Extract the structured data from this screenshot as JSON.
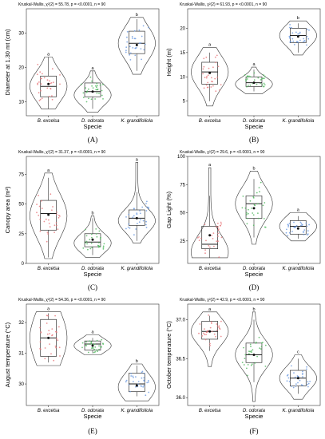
{
  "page": {
    "type": "figure"
  },
  "chart_data": [
    {
      "type": "violin-box",
      "panel_label": "(A)",
      "stat_text": "Kruskal-Wallis, χ²(2) = 55.78, p = <0.0001, n = 90",
      "xlabel": "Specie",
      "ylabel": "Diameter at 1.30 mt (cm)",
      "ylim": [
        6,
        37
      ],
      "yticks": [
        10,
        20,
        30
      ],
      "categories": [
        "B. excelsa",
        "D. odorata",
        "K. grandifoliola"
      ],
      "colors": [
        "#e8777a",
        "#4fb85c",
        "#6a98e0"
      ],
      "groups": [
        {
          "name": "B. excelsa",
          "letter": "a",
          "min": 8,
          "q1": 11.5,
          "median": 14.5,
          "q3": 17.5,
          "max": 23,
          "mean": 15.2,
          "vmin": 8,
          "vmax": 23,
          "vmode": 14.5
        },
        {
          "name": "D. odorata",
          "letter": "a",
          "min": 8,
          "q1": 11.5,
          "median": 13,
          "q3": 15.5,
          "max": 19,
          "mean": 13,
          "vmin": 7,
          "vmax": 19,
          "vmode": 12
        },
        {
          "name": "K. grandifoliola",
          "letter": "b",
          "min": 19,
          "q1": 24,
          "median": 27,
          "q3": 30.5,
          "max": 34,
          "mean": 26.5,
          "vmin": 18,
          "vmax": 34.5,
          "vmode": 27
        }
      ]
    },
    {
      "type": "violin-box",
      "panel_label": "(B)",
      "stat_text": "Kruskal-Wallis, χ²(2) = 61.93, p = <0.0001, n = 90",
      "xlabel": "Specie",
      "ylabel": "Height (m)",
      "ylim": [
        2,
        24
      ],
      "yticks": [
        5,
        10,
        15,
        20
      ],
      "categories": [
        "B. excelsa",
        "D. odorata",
        "K. grandifoliola"
      ],
      "colors": [
        "#e8777a",
        "#4fb85c",
        "#6a98e0"
      ],
      "groups": [
        {
          "name": "B. excelsa",
          "letter": "a",
          "min": 5,
          "q1": 8.5,
          "median": 11,
          "q3": 13,
          "max": 15,
          "mean": 10.8,
          "vmin": 4,
          "vmax": 16,
          "vmode": 11
        },
        {
          "name": "D. odorata",
          "letter": "a",
          "min": 7,
          "q1": 8,
          "median": 8.8,
          "q3": 10,
          "max": 11.5,
          "mean": 8.8,
          "vmin": 6.5,
          "vmax": 12,
          "vmode": 8.5
        },
        {
          "name": "K. grandifoliola",
          "letter": "b",
          "min": 15,
          "q1": 17,
          "median": 18.5,
          "q3": 20,
          "max": 21,
          "mean": 18.3,
          "vmin": 14.5,
          "vmax": 21.5,
          "vmode": 18.5
        }
      ]
    },
    {
      "type": "violin-box",
      "panel_label": "(C)",
      "stat_text": "Kruskal-Wallis, χ²(2) = 31.37, p = <0.0001, n = 90",
      "xlabel": "Specie",
      "ylabel": "Canopy area (m²)",
      "ylim": [
        0,
        90
      ],
      "yticks": [
        0,
        25,
        50,
        75
      ],
      "categories": [
        "B. excelsa",
        "D. odorata",
        "K. grandifoliola"
      ],
      "colors": [
        "#e8777a",
        "#4fb85c",
        "#6a98e0"
      ],
      "groups": [
        {
          "name": "B. excelsa",
          "letter": "a",
          "min": 5,
          "q1": 28,
          "median": 42,
          "q3": 53,
          "max": 72,
          "mean": 41,
          "vmin": 4,
          "vmax": 76,
          "vmode": 40
        },
        {
          "name": "D. odorata",
          "letter": "b",
          "min": 7,
          "q1": 14,
          "median": 18,
          "q3": 25,
          "max": 38,
          "mean": 20,
          "vmin": 5,
          "vmax": 40,
          "vmode": 17
        },
        {
          "name": "K. grandifoliola",
          "letter": "a",
          "min": 19,
          "q1": 32,
          "median": 38,
          "q3": 45,
          "max": 60,
          "mean": 38,
          "vmin": 17,
          "vmax": 85,
          "vmode": 36
        }
      ]
    },
    {
      "type": "violin-box",
      "panel_label": "(D)",
      "stat_text": "Kruskal-Wallis, χ²(2) = 29.6, p = <0.0001, n = 90",
      "xlabel": "Specie",
      "ylabel": "Gap Light (%)",
      "ylim": [
        5,
        100
      ],
      "yticks": [
        25,
        50,
        75,
        100
      ],
      "categories": [
        "B. excelsa",
        "D. odorata",
        "K. grandifoliola"
      ],
      "colors": [
        "#e8777a",
        "#4fb85c",
        "#6a98e0"
      ],
      "groups": [
        {
          "name": "B. excelsa",
          "letter": "a",
          "min": 10,
          "q1": 18,
          "median": 22,
          "q3": 38,
          "max": 65,
          "mean": 30,
          "vmin": 10,
          "vmax": 90,
          "vmode": 15
        },
        {
          "name": "D. odorata",
          "letter": "b",
          "min": 28,
          "q1": 45,
          "median": 58,
          "q3": 65,
          "max": 80,
          "mean": 54,
          "vmin": 22,
          "vmax": 87,
          "vmode": 58
        },
        {
          "name": "K. grandifoliola",
          "letter": "a",
          "min": 27,
          "q1": 31,
          "median": 38,
          "q3": 43,
          "max": 47,
          "mean": 36,
          "vmin": 25,
          "vmax": 50,
          "vmode": 38
        }
      ]
    },
    {
      "type": "violin-box",
      "panel_label": "(E)",
      "stat_text": "Kruskal-Wallis, χ²(2) = 54.36, p = <0.0001, n = 90",
      "xlabel": "Specie",
      "ylabel": "August temperature (°C)",
      "ylim": [
        29.3,
        32.6
      ],
      "yticks": [
        30,
        31,
        32
      ],
      "categories": [
        "B. excelsa",
        "D. odorata",
        "K. grandifoliola"
      ],
      "colors": [
        "#e8777a",
        "#4fb85c",
        "#6a98e0"
      ],
      "groups": [
        {
          "name": "B. excelsa",
          "letter": "a",
          "min": 30.7,
          "q1": 30.9,
          "median": 31.5,
          "q3": 32.1,
          "max": 32.3,
          "mean": 31.5,
          "vmin": 30.6,
          "vmax": 32.35,
          "vmode": 31.5
        },
        {
          "name": "D. odorata",
          "letter": "a",
          "min": 31.0,
          "q1": 31.1,
          "median": 31.3,
          "q3": 31.4,
          "max": 31.5,
          "mean": 31.25,
          "vmin": 30.95,
          "vmax": 31.6,
          "vmode": 31.25
        },
        {
          "name": "K. grandifoliola",
          "letter": "b",
          "min": 29.6,
          "q1": 29.75,
          "median": 30.0,
          "q3": 30.35,
          "max": 30.6,
          "mean": 29.95,
          "vmin": 29.45,
          "vmax": 30.65,
          "vmode": 29.9
        }
      ]
    },
    {
      "type": "violin-box",
      "panel_label": "(F)",
      "stat_text": "Kruskal-Wallis, χ²(2) = 42.9, p = <0.0001, n = 90",
      "xlabel": "Specie",
      "ylabel": "October temperature (°C)",
      "ylim": [
        35.9,
        37.2
      ],
      "yticks": [
        36.0,
        36.5,
        37.0
      ],
      "categories": [
        "B. excelsa",
        "D. odorata",
        "K. grandifoliola"
      ],
      "colors": [
        "#e8777a",
        "#4fb85c",
        "#6a98e0"
      ],
      "groups": [
        {
          "name": "B. excelsa",
          "letter": "a",
          "min": 36.6,
          "q1": 36.75,
          "median": 36.85,
          "q3": 36.98,
          "max": 37.05,
          "mean": 36.85,
          "vmin": 36.4,
          "vmax": 37.1,
          "vmode": 36.85
        },
        {
          "name": "D. odorata",
          "letter": "b",
          "min": 36.2,
          "q1": 36.45,
          "median": 36.55,
          "q3": 36.7,
          "max": 37.0,
          "mean": 36.55,
          "vmin": 35.95,
          "vmax": 37.1,
          "vmode": 36.55
        },
        {
          "name": "K. grandifoliola",
          "letter": "c",
          "min": 36.05,
          "q1": 36.15,
          "median": 36.25,
          "q3": 36.35,
          "max": 36.5,
          "mean": 36.25,
          "vmin": 35.98,
          "vmax": 36.55,
          "vmode": 36.25
        }
      ]
    }
  ]
}
